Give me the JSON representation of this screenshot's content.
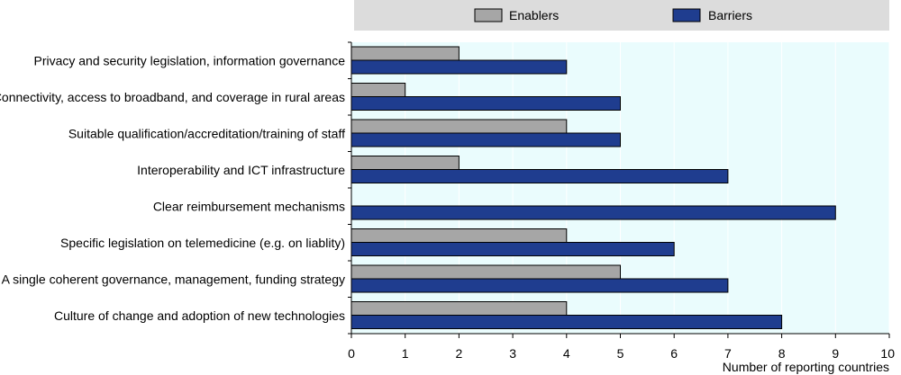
{
  "chart_data": {
    "type": "bar",
    "orientation": "horizontal",
    "categories": [
      "Privacy and security legislation, information governance",
      "Connectivity, access to broadband, and coverage in rural areas",
      "Suitable qualification/accreditation/training of staff",
      "Interoperability and ICT infrastructure",
      "Clear reimbursement mechanisms",
      "Specific legislation on telemedicine (e.g. on liablity)",
      "A single coherent governance, management, funding strategy",
      "Culture of change and adoption of new technologies"
    ],
    "series": [
      {
        "name": "Enablers",
        "color": "#a6a6a6",
        "values": [
          2,
          1,
          4,
          2,
          0,
          4,
          5,
          4
        ]
      },
      {
        "name": "Barriers",
        "color": "#1f3d8f",
        "values": [
          4,
          5,
          5,
          7,
          9,
          6,
          7,
          8
        ]
      }
    ],
    "xlabel": "Number of reporting countries",
    "xlim": [
      0,
      10
    ],
    "xticks": [
      "0",
      "1",
      "2",
      "3",
      "4",
      "5",
      "6",
      "7",
      "8",
      "9",
      "10"
    ],
    "legend_position": "top",
    "plot_background": "#eafcfd",
    "legend_background": "#dcdcdc"
  }
}
